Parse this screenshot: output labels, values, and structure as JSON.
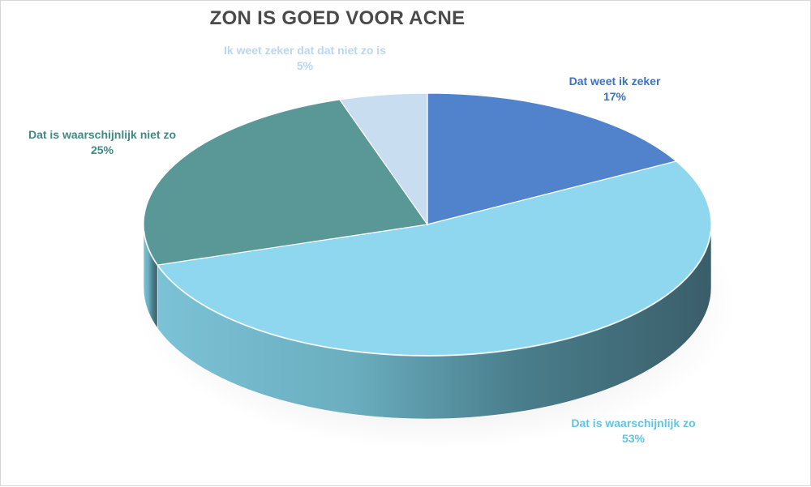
{
  "chart_data": {
    "type": "pie",
    "title": "ZON IS GOED VOOR ACNE",
    "slices": [
      {
        "name": "Dat weet ik zeker",
        "value": 17,
        "label": "17%",
        "color": "#5083cc",
        "label_color": "#3d70c0"
      },
      {
        "name": "Dat is waarschijnlijk zo",
        "value": 53,
        "label": "53%",
        "color": "#8fd7ee",
        "label_color": "#62c4e2"
      },
      {
        "name": "Dat is waarschijnlijk niet zo",
        "value": 25,
        "label": "25%",
        "color": "#5a9797",
        "label_color": "#3f8a83"
      },
      {
        "name": "Ik weet zeker dat dat niet zo is",
        "value": 5,
        "label": "5%",
        "color": "#c9ddf0",
        "label_color": "#bcd6ef"
      }
    ]
  }
}
